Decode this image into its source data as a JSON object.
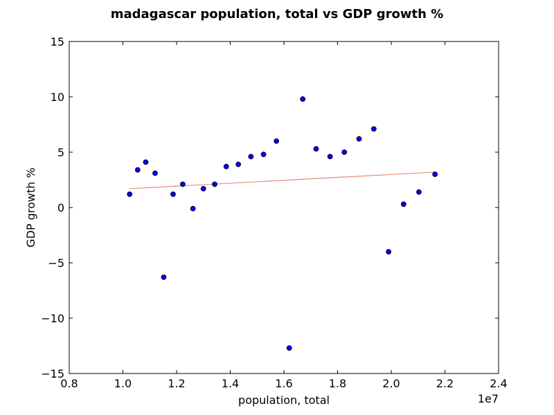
{
  "chart_data": {
    "type": "scatter",
    "title": "madagascar population, total vs GDP growth %",
    "xlabel": "population, total",
    "ylabel": "GDP growth %",
    "x_offset_label": "1e7",
    "xlim": [
      0.8,
      2.4
    ],
    "ylim": [
      -15,
      15
    ],
    "xticks": [
      0.8,
      1.0,
      1.2,
      1.4,
      1.6,
      1.8,
      2.0,
      2.2,
      2.4
    ],
    "yticks": [
      -15,
      -10,
      -5,
      0,
      5,
      10,
      15
    ],
    "xtick_labels": [
      "0.8",
      "1.0",
      "1.2",
      "1.4",
      "1.6",
      "1.8",
      "2.0",
      "2.2",
      "2.4"
    ],
    "ytick_labels": [
      "−15",
      "−10",
      "−5",
      "0",
      "5",
      "10",
      "15"
    ],
    "grid": false,
    "points": [
      {
        "x": 1.025,
        "y": 1.2
      },
      {
        "x": 1.055,
        "y": 3.4
      },
      {
        "x": 1.085,
        "y": 4.1
      },
      {
        "x": 1.12,
        "y": 3.1
      },
      {
        "x": 1.152,
        "y": -6.3
      },
      {
        "x": 1.187,
        "y": 1.2
      },
      {
        "x": 1.223,
        "y": 2.1
      },
      {
        "x": 1.261,
        "y": -0.1
      },
      {
        "x": 1.3,
        "y": 1.7
      },
      {
        "x": 1.342,
        "y": 2.1
      },
      {
        "x": 1.385,
        "y": 3.7
      },
      {
        "x": 1.43,
        "y": 3.9
      },
      {
        "x": 1.477,
        "y": 4.6
      },
      {
        "x": 1.524,
        "y": 4.8
      },
      {
        "x": 1.572,
        "y": 6.0
      },
      {
        "x": 1.62,
        "y": -12.7
      },
      {
        "x": 1.67,
        "y": 9.8
      },
      {
        "x": 1.72,
        "y": 5.3
      },
      {
        "x": 1.772,
        "y": 4.6
      },
      {
        "x": 1.825,
        "y": 5.0
      },
      {
        "x": 1.88,
        "y": 6.2
      },
      {
        "x": 1.935,
        "y": 7.1
      },
      {
        "x": 1.99,
        "y": -4.0
      },
      {
        "x": 2.046,
        "y": 0.3
      },
      {
        "x": 2.103,
        "y": 1.4
      },
      {
        "x": 2.163,
        "y": 3.0
      }
    ],
    "trendline": {
      "x": [
        1.025,
        2.163
      ],
      "y": [
        1.7,
        3.2
      ]
    },
    "colors": {
      "marker_fill": "#0000ff",
      "marker_edge": "#000000",
      "trendline": "#e88a80",
      "axes": "#000000"
    }
  }
}
